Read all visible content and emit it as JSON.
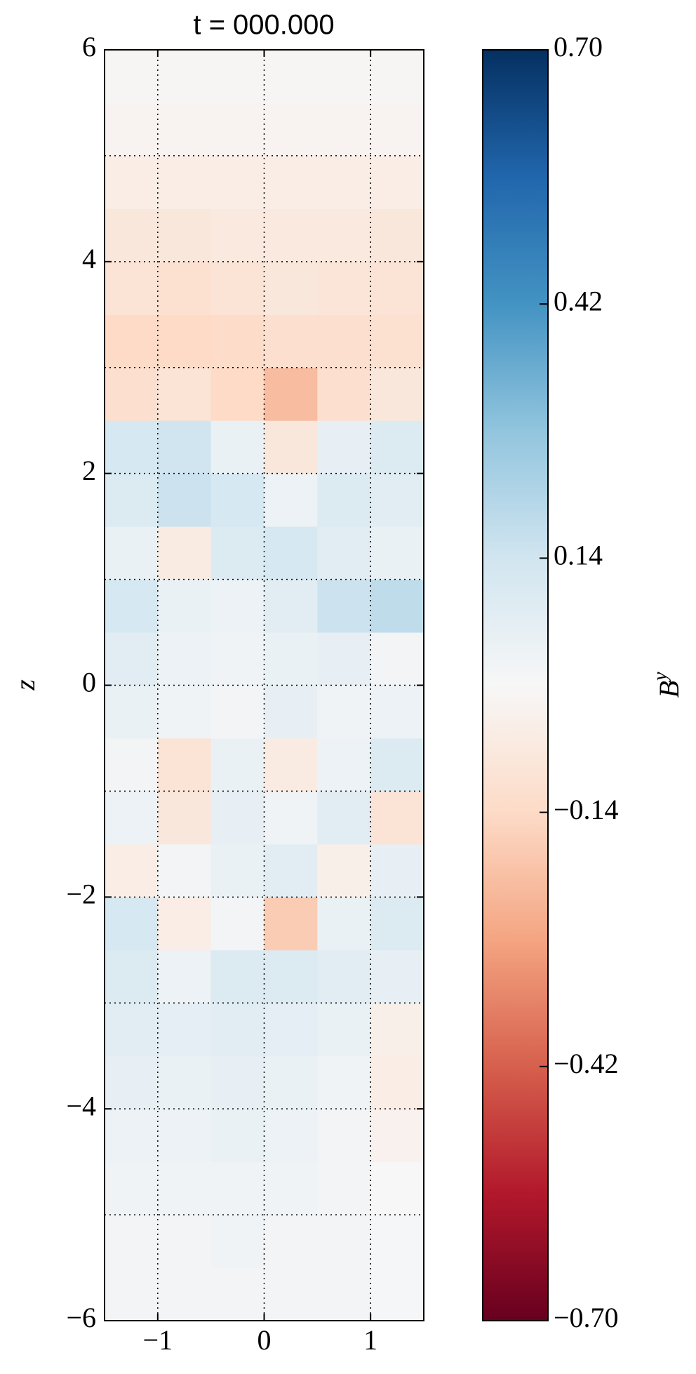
{
  "chart_data": {
    "type": "heatmap",
    "title": "t = 000.000",
    "ylabel": "z",
    "colorbar_label": "B",
    "colorbar_label_superscript": "y",
    "x": [
      -1.25,
      -0.75,
      -0.25,
      0.25,
      0.75,
      1.25
    ],
    "y": [
      -5.75,
      -5.25,
      -4.75,
      -4.25,
      -3.75,
      -3.25,
      -2.75,
      -2.25,
      -1.75,
      -1.25,
      -0.75,
      -0.25,
      0.25,
      0.75,
      1.25,
      1.75,
      2.25,
      2.75,
      3.25,
      3.75,
      4.25,
      4.75,
      5.25,
      5.75
    ],
    "values": [
      [
        0.02,
        0.02,
        0.02,
        0.02,
        0.02,
        0.01
      ],
      [
        0.02,
        0.02,
        0.03,
        0.02,
        0.02,
        0.01
      ],
      [
        0.03,
        0.03,
        0.03,
        0.03,
        0.02,
        0.0
      ],
      [
        0.04,
        0.04,
        0.05,
        0.04,
        0.02,
        -0.03
      ],
      [
        0.06,
        0.05,
        0.06,
        0.05,
        0.03,
        -0.05
      ],
      [
        0.08,
        0.07,
        0.08,
        0.07,
        0.05,
        -0.04
      ],
      [
        0.1,
        0.04,
        0.1,
        0.1,
        0.08,
        0.06
      ],
      [
        0.12,
        -0.05,
        0.02,
        -0.18,
        0.05,
        0.1
      ],
      [
        -0.05,
        0.02,
        0.05,
        0.08,
        -0.04,
        0.06
      ],
      [
        0.04,
        -0.08,
        0.06,
        0.03,
        0.08,
        -0.1
      ],
      [
        0.02,
        -0.1,
        0.05,
        -0.06,
        0.04,
        0.1
      ],
      [
        0.05,
        0.03,
        0.02,
        0.06,
        0.03,
        0.04
      ],
      [
        0.08,
        0.04,
        0.03,
        0.05,
        0.06,
        0.02
      ],
      [
        0.12,
        0.05,
        0.04,
        0.08,
        0.15,
        0.18
      ],
      [
        0.05,
        -0.06,
        0.1,
        0.12,
        0.08,
        0.05
      ],
      [
        0.1,
        0.15,
        0.12,
        0.04,
        0.1,
        0.08
      ],
      [
        0.12,
        0.14,
        0.05,
        -0.08,
        0.06,
        0.1
      ],
      [
        -0.12,
        -0.1,
        -0.14,
        -0.22,
        -0.12,
        -0.08
      ],
      [
        -0.14,
        -0.14,
        -0.13,
        -0.12,
        -0.12,
        -0.11
      ],
      [
        -0.1,
        -0.11,
        -0.1,
        -0.08,
        -0.09,
        -0.1
      ],
      [
        -0.08,
        -0.08,
        -0.07,
        -0.07,
        -0.07,
        -0.08
      ],
      [
        -0.05,
        -0.05,
        -0.05,
        -0.05,
        -0.05,
        -0.05
      ],
      [
        -0.02,
        -0.02,
        -0.02,
        -0.02,
        -0.02,
        -0.02
      ],
      [
        -0.01,
        -0.01,
        -0.01,
        -0.01,
        -0.01,
        -0.01
      ]
    ],
    "xlim": [
      -1.5,
      1.5
    ],
    "xticks": [
      {
        "value": -1,
        "label": "−1"
      },
      0,
      1
    ],
    "ylim": [
      -6,
      6
    ],
    "yticks": [
      {
        "value": -6,
        "label": "−6"
      },
      {
        "value": -4,
        "label": "−4"
      },
      {
        "value": -2,
        "label": "−2"
      },
      0,
      2,
      4,
      6
    ],
    "yminorticks": [
      -5,
      -3,
      -1,
      1,
      3,
      5
    ],
    "grid": true,
    "clim": [
      -0.7,
      0.7
    ],
    "cticks": [
      {
        "value": -0.7,
        "label": "−0.70"
      },
      {
        "value": -0.42,
        "label": "−0.42"
      },
      {
        "value": -0.14,
        "label": "−0.14"
      },
      0.14,
      0.42,
      {
        "value": 0.7,
        "label": "0.70"
      }
    ],
    "colormap_colors": [
      "#67001f",
      "#b2182b",
      "#d6604d",
      "#f4a582",
      "#fddbc7",
      "#f7f7f7",
      "#d1e5f0",
      "#92c5de",
      "#4393c3",
      "#2166ac",
      "#053061"
    ]
  }
}
